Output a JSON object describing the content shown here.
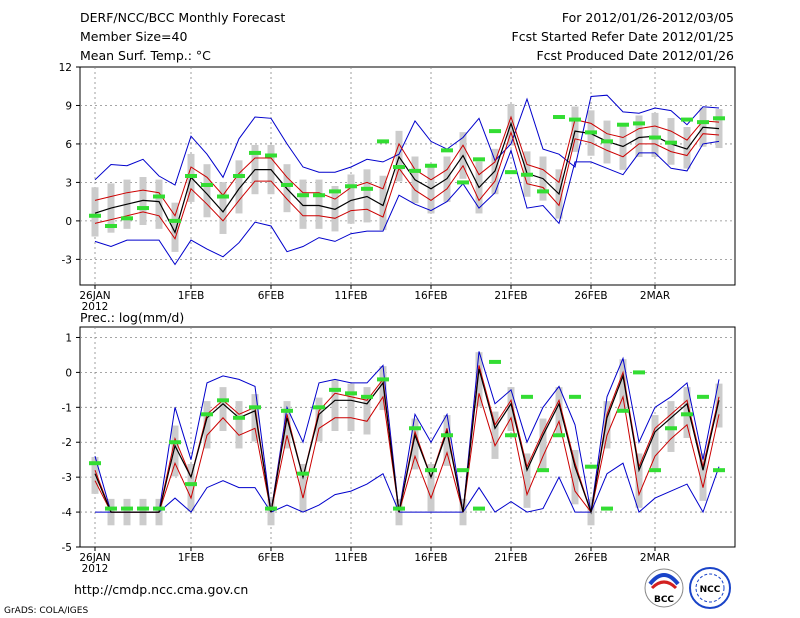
{
  "header": {
    "line1_left": "DERF/NCC/BCC Monthly Forecast",
    "line2_left": "Member Size=40",
    "line3_left": "Mean Surf. Temp.: °C",
    "line1_right": "For 2012/01/26-2012/03/05",
    "line2_right": "Fcst Started Refer Date 2012/01/25",
    "line3_right": "Fcst Produced Date 2012/01/26"
  },
  "footer": {
    "url": "http://cmdp.ncc.cma.gov.cn",
    "grads_credit": "GrADS: COLA/IGES",
    "logo_left_text": "BCC",
    "logo_right_text": "NCC"
  },
  "colors": {
    "envelope": "#0000cc",
    "spread": "#cc0000",
    "mean": "#000000",
    "box": "#cccccc",
    "obs": "#33dd33",
    "grid": "#888888"
  },
  "chart_data": [
    {
      "type": "line",
      "title": "Mean Surf. Temp.: °C",
      "ylabel": "°C",
      "ylim": [
        -5,
        12
      ],
      "yticks": [
        -3,
        0,
        3,
        6,
        9,
        12
      ],
      "yticklabels": [
        "-3",
        "0",
        "3",
        "6",
        "9",
        "12"
      ],
      "xtick_days": [
        0,
        6,
        11,
        16,
        21,
        26,
        31,
        35
      ],
      "xticklabels": [
        "26JAN",
        "1FEB",
        "6FEB",
        "11FEB",
        "16FEB",
        "21FEB",
        "26FEB",
        "2MAR"
      ],
      "xsublabel": "2012",
      "days": 40,
      "series": [
        {
          "name": "max",
          "values": [
            3.2,
            4.4,
            4.3,
            4.8,
            3.5,
            2.8,
            6.6,
            5.2,
            3.4,
            6.4,
            8.1,
            8.0,
            6.0,
            4.2,
            3.8,
            3.8,
            4.2,
            4.8,
            4.6,
            5.2,
            7.8,
            6.2,
            5.6,
            6.5,
            8.0,
            4.7,
            6.0,
            9.5,
            5.6,
            5.2,
            4.2,
            9.7,
            9.8,
            8.5,
            8.4,
            8.8,
            8.6,
            7.5,
            8.9,
            8.8
          ]
        },
        {
          "name": "upper",
          "values": [
            1.6,
            1.9,
            2.2,
            2.4,
            2.2,
            0.4,
            4.2,
            3.4,
            2.0,
            3.7,
            4.9,
            4.9,
            3.4,
            2.2,
            2.2,
            1.7,
            2.6,
            3.0,
            2.5,
            6.0,
            4.0,
            3.2,
            4.0,
            5.9,
            3.6,
            4.6,
            8.1,
            4.4,
            4.0,
            3.0,
            7.9,
            7.6,
            6.8,
            6.5,
            7.2,
            7.4,
            7.0,
            6.3,
            7.8,
            7.7
          ]
        },
        {
          "name": "mean",
          "values": [
            0.6,
            1.0,
            1.3,
            1.6,
            1.5,
            -0.9,
            3.4,
            2.1,
            0.7,
            2.5,
            4.0,
            4.0,
            2.5,
            1.2,
            1.2,
            0.9,
            1.6,
            1.9,
            1.2,
            5.0,
            3.2,
            2.5,
            3.3,
            5.1,
            2.6,
            3.9,
            7.6,
            3.7,
            3.3,
            2.1,
            7.0,
            6.8,
            6.2,
            5.8,
            6.5,
            6.6,
            6.0,
            5.6,
            7.3,
            7.2
          ]
        },
        {
          "name": "lower",
          "values": [
            -0.2,
            0.1,
            0.4,
            0.7,
            0.4,
            -1.4,
            2.5,
            1.3,
            0.0,
            1.6,
            3.1,
            3.1,
            1.7,
            0.4,
            0.4,
            0.2,
            0.8,
            0.9,
            0.3,
            4.1,
            2.4,
            1.6,
            2.5,
            4.3,
            1.6,
            3.1,
            6.9,
            2.9,
            2.6,
            1.2,
            6.4,
            6.1,
            5.5,
            5.0,
            6.0,
            6.0,
            5.4,
            5.1,
            6.8,
            6.7
          ]
        },
        {
          "name": "min",
          "values": [
            -1.6,
            -2.0,
            -1.5,
            -1.5,
            -1.5,
            -3.4,
            -1.5,
            -2.2,
            -2.8,
            -1.7,
            -0.1,
            -0.4,
            -2.4,
            -2.0,
            -1.3,
            -1.6,
            -1.0,
            -0.8,
            -0.8,
            2.0,
            1.3,
            0.8,
            1.5,
            2.9,
            1.0,
            2.2,
            5.5,
            1.0,
            1.2,
            -0.2,
            4.6,
            4.6,
            4.1,
            3.6,
            5.3,
            5.3,
            4.1,
            3.9,
            6.0,
            6.2
          ]
        },
        {
          "name": "obs",
          "values": [
            0.4,
            -0.4,
            0.2,
            1.0,
            1.9,
            0.0,
            3.5,
            2.8,
            1.9,
            3.5,
            5.3,
            5.1,
            2.8,
            2.0,
            2.0,
            2.3,
            2.7,
            2.5,
            6.2,
            4.2,
            3.9,
            4.3,
            5.5,
            3.0,
            4.8,
            7.0,
            3.8,
            3.6,
            2.3,
            8.1,
            7.9,
            6.9,
            6.2,
            7.5,
            7.6,
            6.5,
            6.1,
            7.9,
            7.7,
            8.0
          ]
        }
      ]
    },
    {
      "type": "line",
      "title": "Prec.: log(mm/d)",
      "ylabel": "log(mm/d)",
      "ylim": [
        -5,
        1.3
      ],
      "yticks": [
        -5,
        -4,
        -3,
        -2,
        -1,
        0,
        1
      ],
      "yticklabels": [
        "-5",
        "-4",
        "-3",
        "-2",
        "-1",
        "0",
        "1"
      ],
      "xtick_days": [
        0,
        6,
        11,
        16,
        21,
        26,
        31,
        35
      ],
      "xticklabels": [
        "26JAN",
        "1FEB",
        "6FEB",
        "11FEB",
        "16FEB",
        "21FEB",
        "26FEB",
        "2MAR"
      ],
      "xsublabel": "2012",
      "days": 40,
      "series": [
        {
          "name": "max",
          "values": [
            -2.4,
            -4.0,
            -4.0,
            -4.0,
            -4.0,
            -1.0,
            -2.5,
            -0.3,
            -0.1,
            -0.2,
            -0.4,
            -4.0,
            -1.0,
            -2.0,
            -0.3,
            -0.2,
            -0.3,
            -0.3,
            0.2,
            -4.0,
            -1.2,
            -2.0,
            -1.2,
            -4.0,
            0.6,
            -0.9,
            -0.5,
            -2.0,
            -1.0,
            -0.4,
            -1.5,
            -4.0,
            -0.7,
            0.4,
            -2.0,
            -1.0,
            -0.7,
            -0.3,
            -2.5,
            -0.2
          ]
        },
        {
          "name": "upper",
          "values": [
            -2.8,
            -4.0,
            -4.0,
            -4.0,
            -4.0,
            -1.9,
            -3.0,
            -1.2,
            -0.8,
            -1.2,
            -1.0,
            -4.0,
            -1.2,
            -3.0,
            -1.1,
            -0.6,
            -0.7,
            -0.8,
            -0.2,
            -4.0,
            -1.7,
            -3.0,
            -1.6,
            -4.0,
            0.2,
            -1.5,
            -0.8,
            -2.7,
            -1.7,
            -0.8,
            -2.6,
            -4.0,
            -1.2,
            0.0,
            -2.7,
            -1.6,
            -1.2,
            -0.8,
            -2.7,
            -0.7
          ]
        },
        {
          "name": "mean",
          "values": [
            -2.9,
            -4.0,
            -4.0,
            -4.0,
            -4.0,
            -2.1,
            -3.0,
            -1.3,
            -0.9,
            -1.3,
            -1.1,
            -4.0,
            -1.3,
            -3.0,
            -1.2,
            -0.8,
            -0.8,
            -0.9,
            -0.3,
            -4.0,
            -1.8,
            -3.0,
            -1.7,
            -4.0,
            0.1,
            -1.6,
            -0.9,
            -2.8,
            -1.8,
            -0.9,
            -2.7,
            -4.0,
            -1.3,
            -0.1,
            -2.8,
            -1.7,
            -1.3,
            -0.9,
            -2.8,
            -0.8
          ]
        },
        {
          "name": "lower",
          "values": [
            -3.1,
            -4.0,
            -4.0,
            -4.0,
            -4.0,
            -2.6,
            -3.6,
            -1.8,
            -1.3,
            -1.8,
            -1.6,
            -4.0,
            -1.8,
            -3.6,
            -1.6,
            -1.3,
            -1.3,
            -1.4,
            -0.7,
            -4.0,
            -2.4,
            -3.6,
            -2.3,
            -4.0,
            -0.6,
            -2.1,
            -1.3,
            -3.5,
            -2.4,
            -1.4,
            -3.4,
            -4.0,
            -1.8,
            -0.7,
            -3.5,
            -2.4,
            -1.9,
            -1.5,
            -3.3,
            -1.2
          ]
        },
        {
          "name": "min",
          "values": [
            -4.0,
            -4.0,
            -4.0,
            -4.0,
            -4.0,
            -3.6,
            -4.0,
            -3.3,
            -3.1,
            -3.3,
            -3.3,
            -4.0,
            -3.8,
            -4.0,
            -3.8,
            -3.5,
            -3.4,
            -3.2,
            -2.9,
            -4.0,
            -4.0,
            -4.0,
            -4.0,
            -4.0,
            -3.3,
            -4.0,
            -3.7,
            -4.0,
            -3.9,
            -3.0,
            -4.0,
            -4.0,
            -2.9,
            -2.6,
            -4.0,
            -3.6,
            -3.4,
            -3.2,
            -4.0,
            -2.7
          ]
        },
        {
          "name": "obs",
          "values": [
            -2.6,
            -3.9,
            -3.9,
            -3.9,
            -3.9,
            -2.0,
            -3.2,
            -1.2,
            -0.8,
            -1.3,
            -1.0,
            -3.9,
            -1.1,
            -2.9,
            -1.0,
            -0.5,
            -0.6,
            -0.7,
            -0.2,
            -3.9,
            -1.6,
            -2.8,
            -1.8,
            -2.8,
            -3.9,
            0.3,
            -1.8,
            -0.7,
            -2.8,
            -1.8,
            -0.7,
            -2.7,
            -3.9,
            -1.1,
            0.0,
            -2.8,
            -1.6,
            -1.2,
            -0.7,
            -2.8
          ]
        }
      ]
    }
  ]
}
